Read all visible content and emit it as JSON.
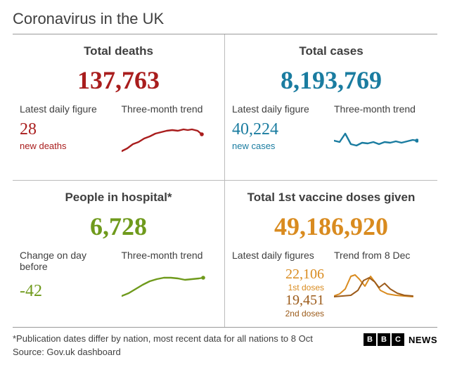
{
  "title": "Coronavirus in the UK",
  "colors": {
    "deaths": "#a91d1d",
    "cases": "#1a7ca0",
    "hospital": "#6f9a1c",
    "vaccine1": "#d98b1f",
    "vaccine2": "#9c5b1a",
    "text": "#3f3f3f"
  },
  "panels": {
    "deaths": {
      "title": "Total deaths",
      "total": "137,763",
      "sublabel_left": "Latest daily figure",
      "daily": "28",
      "daily_caption": "new deaths",
      "sublabel_right": "Three-month trend",
      "trend": {
        "points": [
          [
            0,
            40
          ],
          [
            8,
            36
          ],
          [
            16,
            30
          ],
          [
            24,
            27
          ],
          [
            32,
            22
          ],
          [
            40,
            19
          ],
          [
            48,
            15
          ],
          [
            56,
            13
          ],
          [
            64,
            11
          ],
          [
            72,
            10
          ],
          [
            80,
            11
          ],
          [
            88,
            9
          ],
          [
            94,
            10
          ],
          [
            100,
            9
          ],
          [
            108,
            11
          ],
          [
            114,
            16
          ]
        ],
        "stroke_width": 2.4,
        "marker_r": 2.8
      }
    },
    "cases": {
      "title": "Total cases",
      "total": "8,193,769",
      "sublabel_left": "Latest daily figure",
      "daily": "40,224",
      "daily_caption": "new cases",
      "sublabel_right": "Three-month trend",
      "trend": {
        "points": [
          [
            0,
            25
          ],
          [
            8,
            27
          ],
          [
            16,
            15
          ],
          [
            24,
            30
          ],
          [
            32,
            32
          ],
          [
            40,
            28
          ],
          [
            48,
            29
          ],
          [
            56,
            27
          ],
          [
            64,
            30
          ],
          [
            72,
            27
          ],
          [
            80,
            28
          ],
          [
            88,
            26
          ],
          [
            96,
            28
          ],
          [
            104,
            26
          ],
          [
            112,
            24
          ],
          [
            118,
            25
          ]
        ],
        "stroke_width": 2.4,
        "marker_r": 2.8
      }
    },
    "hospital": {
      "title": "People in hospital*",
      "total": "6,728",
      "sublabel_left": "Change on day before",
      "daily": "-42",
      "daily_caption": "",
      "sublabel_right": "Three-month trend",
      "trend": {
        "points": [
          [
            0,
            38
          ],
          [
            10,
            34
          ],
          [
            20,
            28
          ],
          [
            30,
            22
          ],
          [
            40,
            17
          ],
          [
            50,
            14
          ],
          [
            60,
            12
          ],
          [
            70,
            12
          ],
          [
            80,
            13
          ],
          [
            90,
            15
          ],
          [
            100,
            14
          ],
          [
            110,
            13
          ],
          [
            116,
            12
          ]
        ],
        "stroke_width": 2.4,
        "marker_r": 2.8
      }
    },
    "vaccines": {
      "title": "Total 1st vaccine doses given",
      "total": "49,186,920",
      "sublabel_left": "Latest daily figures",
      "dose1_value": "22,106",
      "dose1_label": "1st doses",
      "dose2_value": "19,451",
      "dose2_label": "2nd doses",
      "sublabel_right": "Trend from 8 Dec",
      "trend1": {
        "points": [
          [
            0,
            38
          ],
          [
            8,
            35
          ],
          [
            16,
            28
          ],
          [
            24,
            10
          ],
          [
            30,
            8
          ],
          [
            36,
            14
          ],
          [
            44,
            24
          ],
          [
            52,
            10
          ],
          [
            58,
            18
          ],
          [
            66,
            30
          ],
          [
            76,
            35
          ],
          [
            88,
            37
          ],
          [
            100,
            38
          ],
          [
            112,
            39
          ]
        ],
        "stroke_width": 2.0
      },
      "trend2": {
        "points": [
          [
            0,
            39
          ],
          [
            12,
            38
          ],
          [
            24,
            37
          ],
          [
            34,
            30
          ],
          [
            42,
            16
          ],
          [
            50,
            12
          ],
          [
            58,
            18
          ],
          [
            64,
            26
          ],
          [
            72,
            20
          ],
          [
            80,
            28
          ],
          [
            90,
            34
          ],
          [
            100,
            37
          ],
          [
            112,
            38
          ]
        ],
        "stroke_width": 2.0
      }
    }
  },
  "footer": {
    "note": "*Publication dates differ by nation, most recent data for all nations to 8 Oct",
    "source": "Source: Gov.uk dashboard",
    "logo": [
      "B",
      "B",
      "C"
    ],
    "logo_text": "NEWS"
  }
}
